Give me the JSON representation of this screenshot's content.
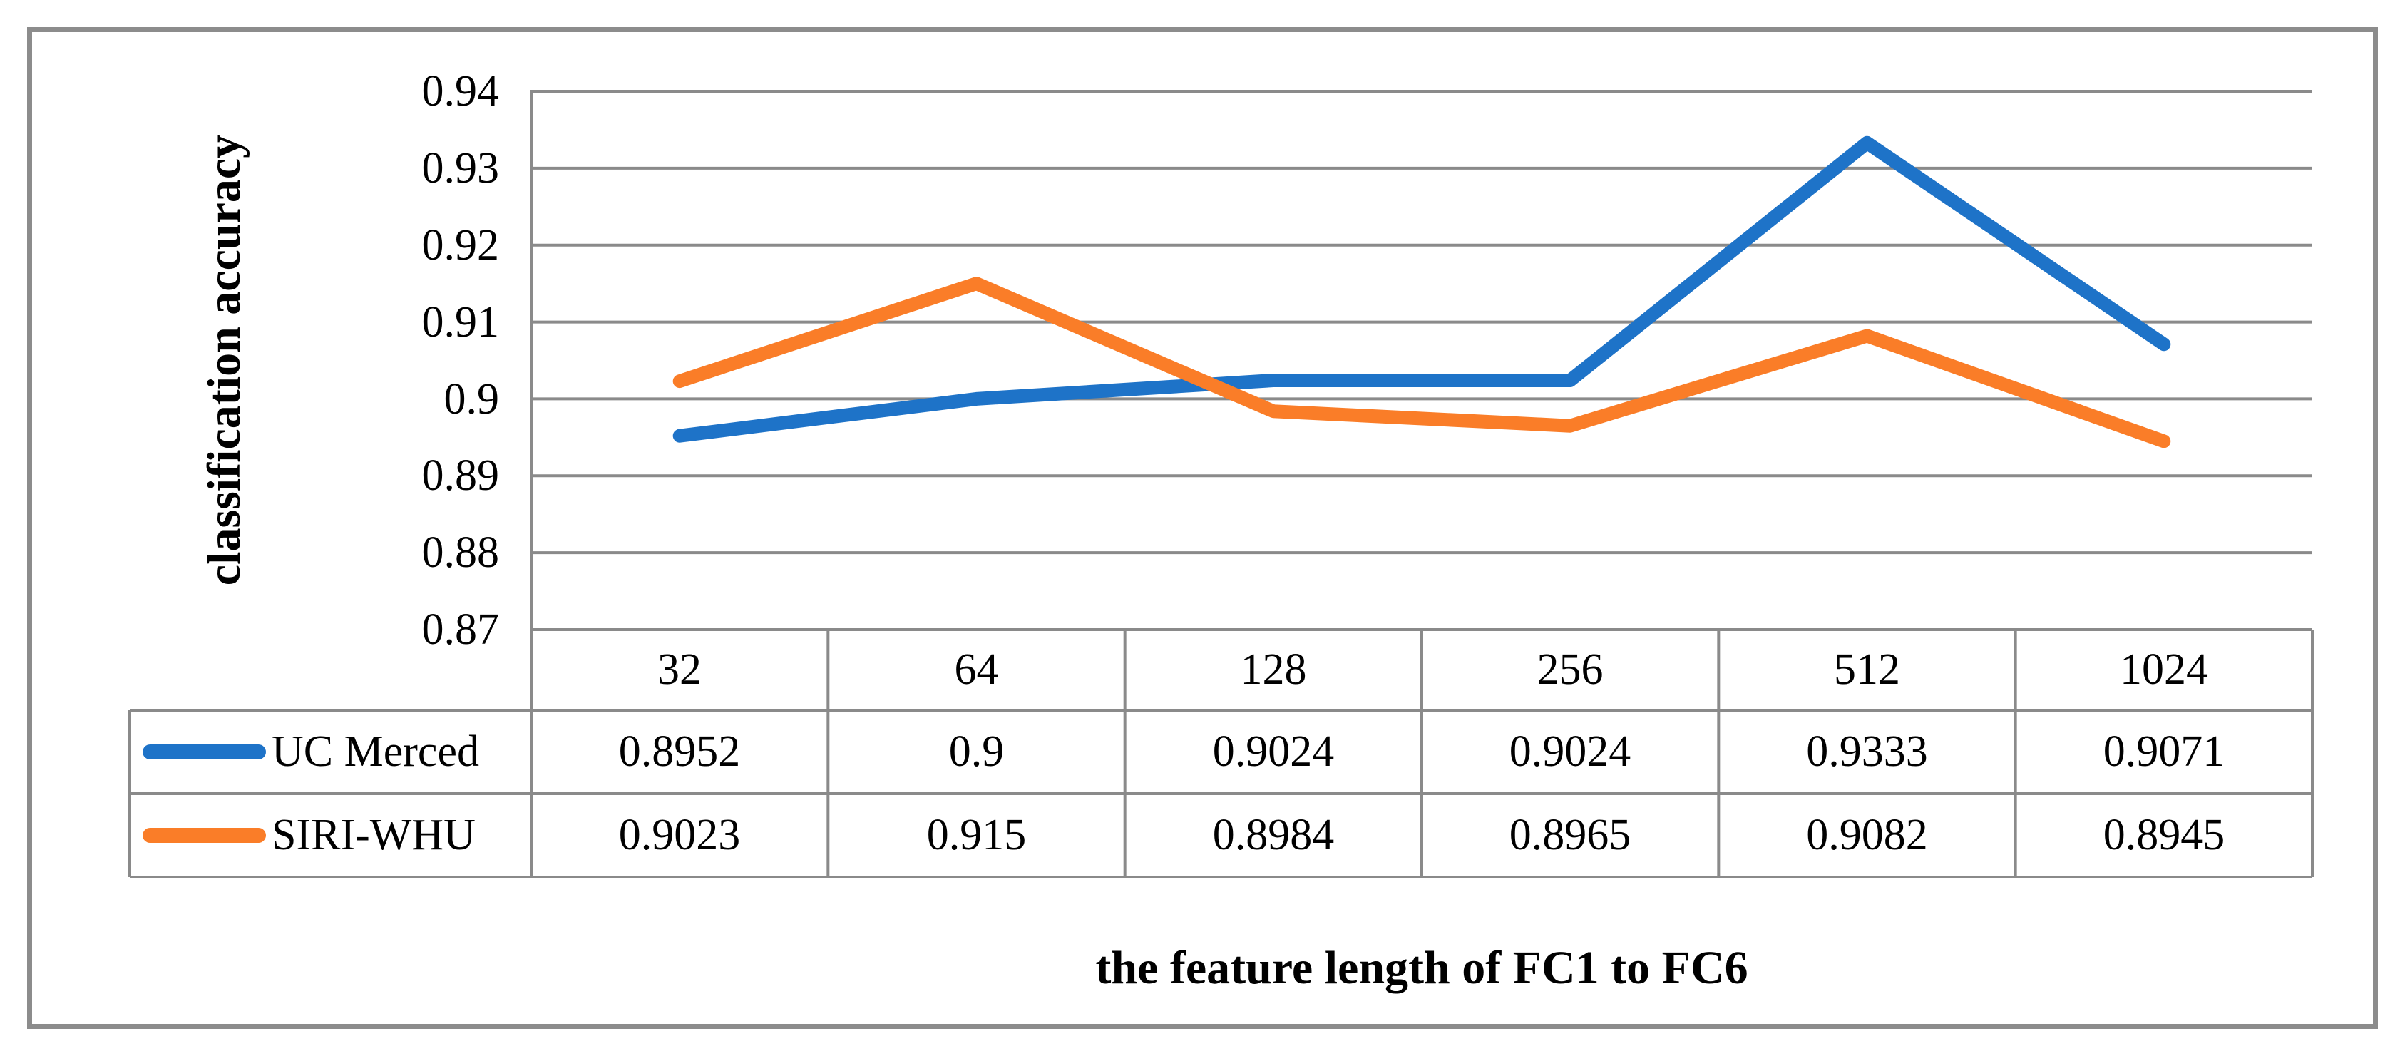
{
  "chart_data": {
    "type": "line",
    "categories": [
      "32",
      "64",
      "128",
      "256",
      "512",
      "1024"
    ],
    "series": [
      {
        "name": "UC Merced",
        "color": "#1E73C8",
        "values": [
          0.8952,
          0.9,
          0.9024,
          0.9024,
          0.9333,
          0.9071
        ]
      },
      {
        "name": "SIRI-WHU",
        "color": "#FA7D28",
        "values": [
          0.9023,
          0.915,
          0.8984,
          0.8965,
          0.9082,
          0.8945
        ]
      }
    ],
    "title": "",
    "xlabel": "the feature length of FC1 to FC6",
    "ylabel": "classification accuracy",
    "ylim": [
      0.87,
      0.94
    ],
    "ytick_step": 0.01,
    "yticks": [
      "0.94",
      "0.93",
      "0.92",
      "0.91",
      "0.9",
      "0.89",
      "0.88",
      "0.87"
    ],
    "grid": "horizontal-only",
    "legend_position": "table-row-headers"
  },
  "table": {
    "categories": [
      "32",
      "64",
      "128",
      "256",
      "512",
      "1024"
    ],
    "rows": [
      {
        "label": "UC Merced",
        "values": [
          "0.8952",
          "0.9",
          "0.9024",
          "0.9024",
          "0.9333",
          "0.9071"
        ]
      },
      {
        "label": "SIRI-WHU",
        "values": [
          "0.9023",
          "0.915",
          "0.8984",
          "0.8965",
          "0.9082",
          "0.8945"
        ]
      }
    ]
  },
  "colors": {
    "series_blue": "#1E73C8",
    "series_orange": "#FA7D28",
    "gridline_gray": "#8A8A8A",
    "frame_gray": "#8C8C8C",
    "text": "#000000",
    "background": "#FFFFFF"
  }
}
